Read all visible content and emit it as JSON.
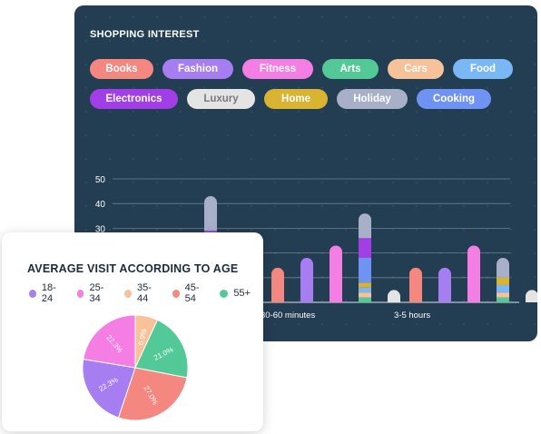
{
  "shopping_interest": {
    "title": "SHOPPING INTEREST",
    "tags": [
      {
        "label": "Books",
        "color": "#f4877f",
        "text_color": "#ffffff"
      },
      {
        "label": "Fashion",
        "color": "#a77df2",
        "text_color": "#ffffff"
      },
      {
        "label": "Fitness",
        "color": "#f47ee3",
        "text_color": "#ffffff"
      },
      {
        "label": "Arts",
        "color": "#52c996",
        "text_color": "#ffffff"
      },
      {
        "label": "Cars",
        "color": "#f7c199",
        "text_color": "#ffffff"
      },
      {
        "label": "Food",
        "color": "#7ab8f5",
        "text_color": "#ffffff"
      },
      {
        "label": "Electronics",
        "color": "#a13ee6",
        "text_color": "#ffffff"
      },
      {
        "label": "Luxury",
        "color": "#e4e4e4",
        "text_color": "#7a7a7a"
      },
      {
        "label": "Home",
        "color": "#d9b432",
        "text_color": "#ffffff"
      },
      {
        "label": "Holiday",
        "color": "#a7b0c8",
        "text_color": "#ffffff"
      },
      {
        "label": "Cooking",
        "color": "#6f93f2",
        "text_color": "#ffffff"
      }
    ]
  },
  "chart_data": [
    {
      "type": "bar",
      "ylim": [
        0,
        50
      ],
      "yticks": [
        0,
        10,
        20,
        30,
        40,
        50
      ],
      "grid": true,
      "groups": [
        {
          "label": "",
          "bars": [
            {
              "category": "Luxury",
              "stack": [
                {
                  "name": "Electronics",
                  "value": 29
                },
                {
                  "name": "Holiday",
                  "value": 14
                }
              ]
            }
          ]
        },
        {
          "label": "30-60 minutes",
          "bars": [
            {
              "category": "Books",
              "value": 14
            },
            {
              "category": "Fashion",
              "value": 18
            },
            {
              "category": "Fitness",
              "value": 23
            },
            {
              "category": "Mixed",
              "stack": [
                {
                  "name": "Arts",
                  "value": 2
                },
                {
                  "name": "Cars",
                  "value": 2
                },
                {
                  "name": "Food",
                  "value": 2
                },
                {
                  "name": "Home",
                  "value": 2
                },
                {
                  "name": "Cooking",
                  "value": 10
                },
                {
                  "name": "Electronics",
                  "value": 8
                },
                {
                  "name": "Holiday",
                  "value": 10
                }
              ]
            },
            {
              "category": "Luxury",
              "value": 5
            }
          ]
        },
        {
          "label": "3-5 hours",
          "bars": [
            {
              "category": "Books",
              "value": 14
            },
            {
              "category": "Fashion",
              "value": 14
            },
            {
              "category": "Fitness",
              "value": 23
            },
            {
              "category": "Mixed",
              "stack": [
                {
                  "name": "Arts",
                  "value": 2
                },
                {
                  "name": "Cars",
                  "value": 2
                },
                {
                  "name": "Food",
                  "value": 3
                },
                {
                  "name": "Home",
                  "value": 3
                },
                {
                  "name": "Holiday",
                  "value": 8
                }
              ]
            },
            {
              "category": "Luxury",
              "value": 5
            }
          ]
        }
      ]
    },
    {
      "type": "pie",
      "title": "AVERAGE VISIT ACCORDING TO AGE",
      "legend": [
        {
          "label": "18-24",
          "color": "#a77df2"
        },
        {
          "label": "25-34",
          "color": "#f47ee3"
        },
        {
          "label": "35-44",
          "color": "#f7c199"
        },
        {
          "label": "45-54",
          "color": "#f4877f"
        },
        {
          "label": "55+",
          "color": "#52c996"
        }
      ],
      "slices": [
        {
          "label": "35-44",
          "value": 6.9,
          "text": "6.9%",
          "color": "#f7c199"
        },
        {
          "label": "55+",
          "value": 21.0,
          "text": "21.0%",
          "color": "#52c996"
        },
        {
          "label": "45-54",
          "value": 27.0,
          "text": "27.0%",
          "color": "#f4877f"
        },
        {
          "label": "18-24",
          "value": 22.3,
          "text": "22.3%",
          "color": "#a77df2"
        },
        {
          "label": "25-34",
          "value": 22.3,
          "text": "22.3%",
          "color": "#f47ee3"
        }
      ]
    }
  ]
}
